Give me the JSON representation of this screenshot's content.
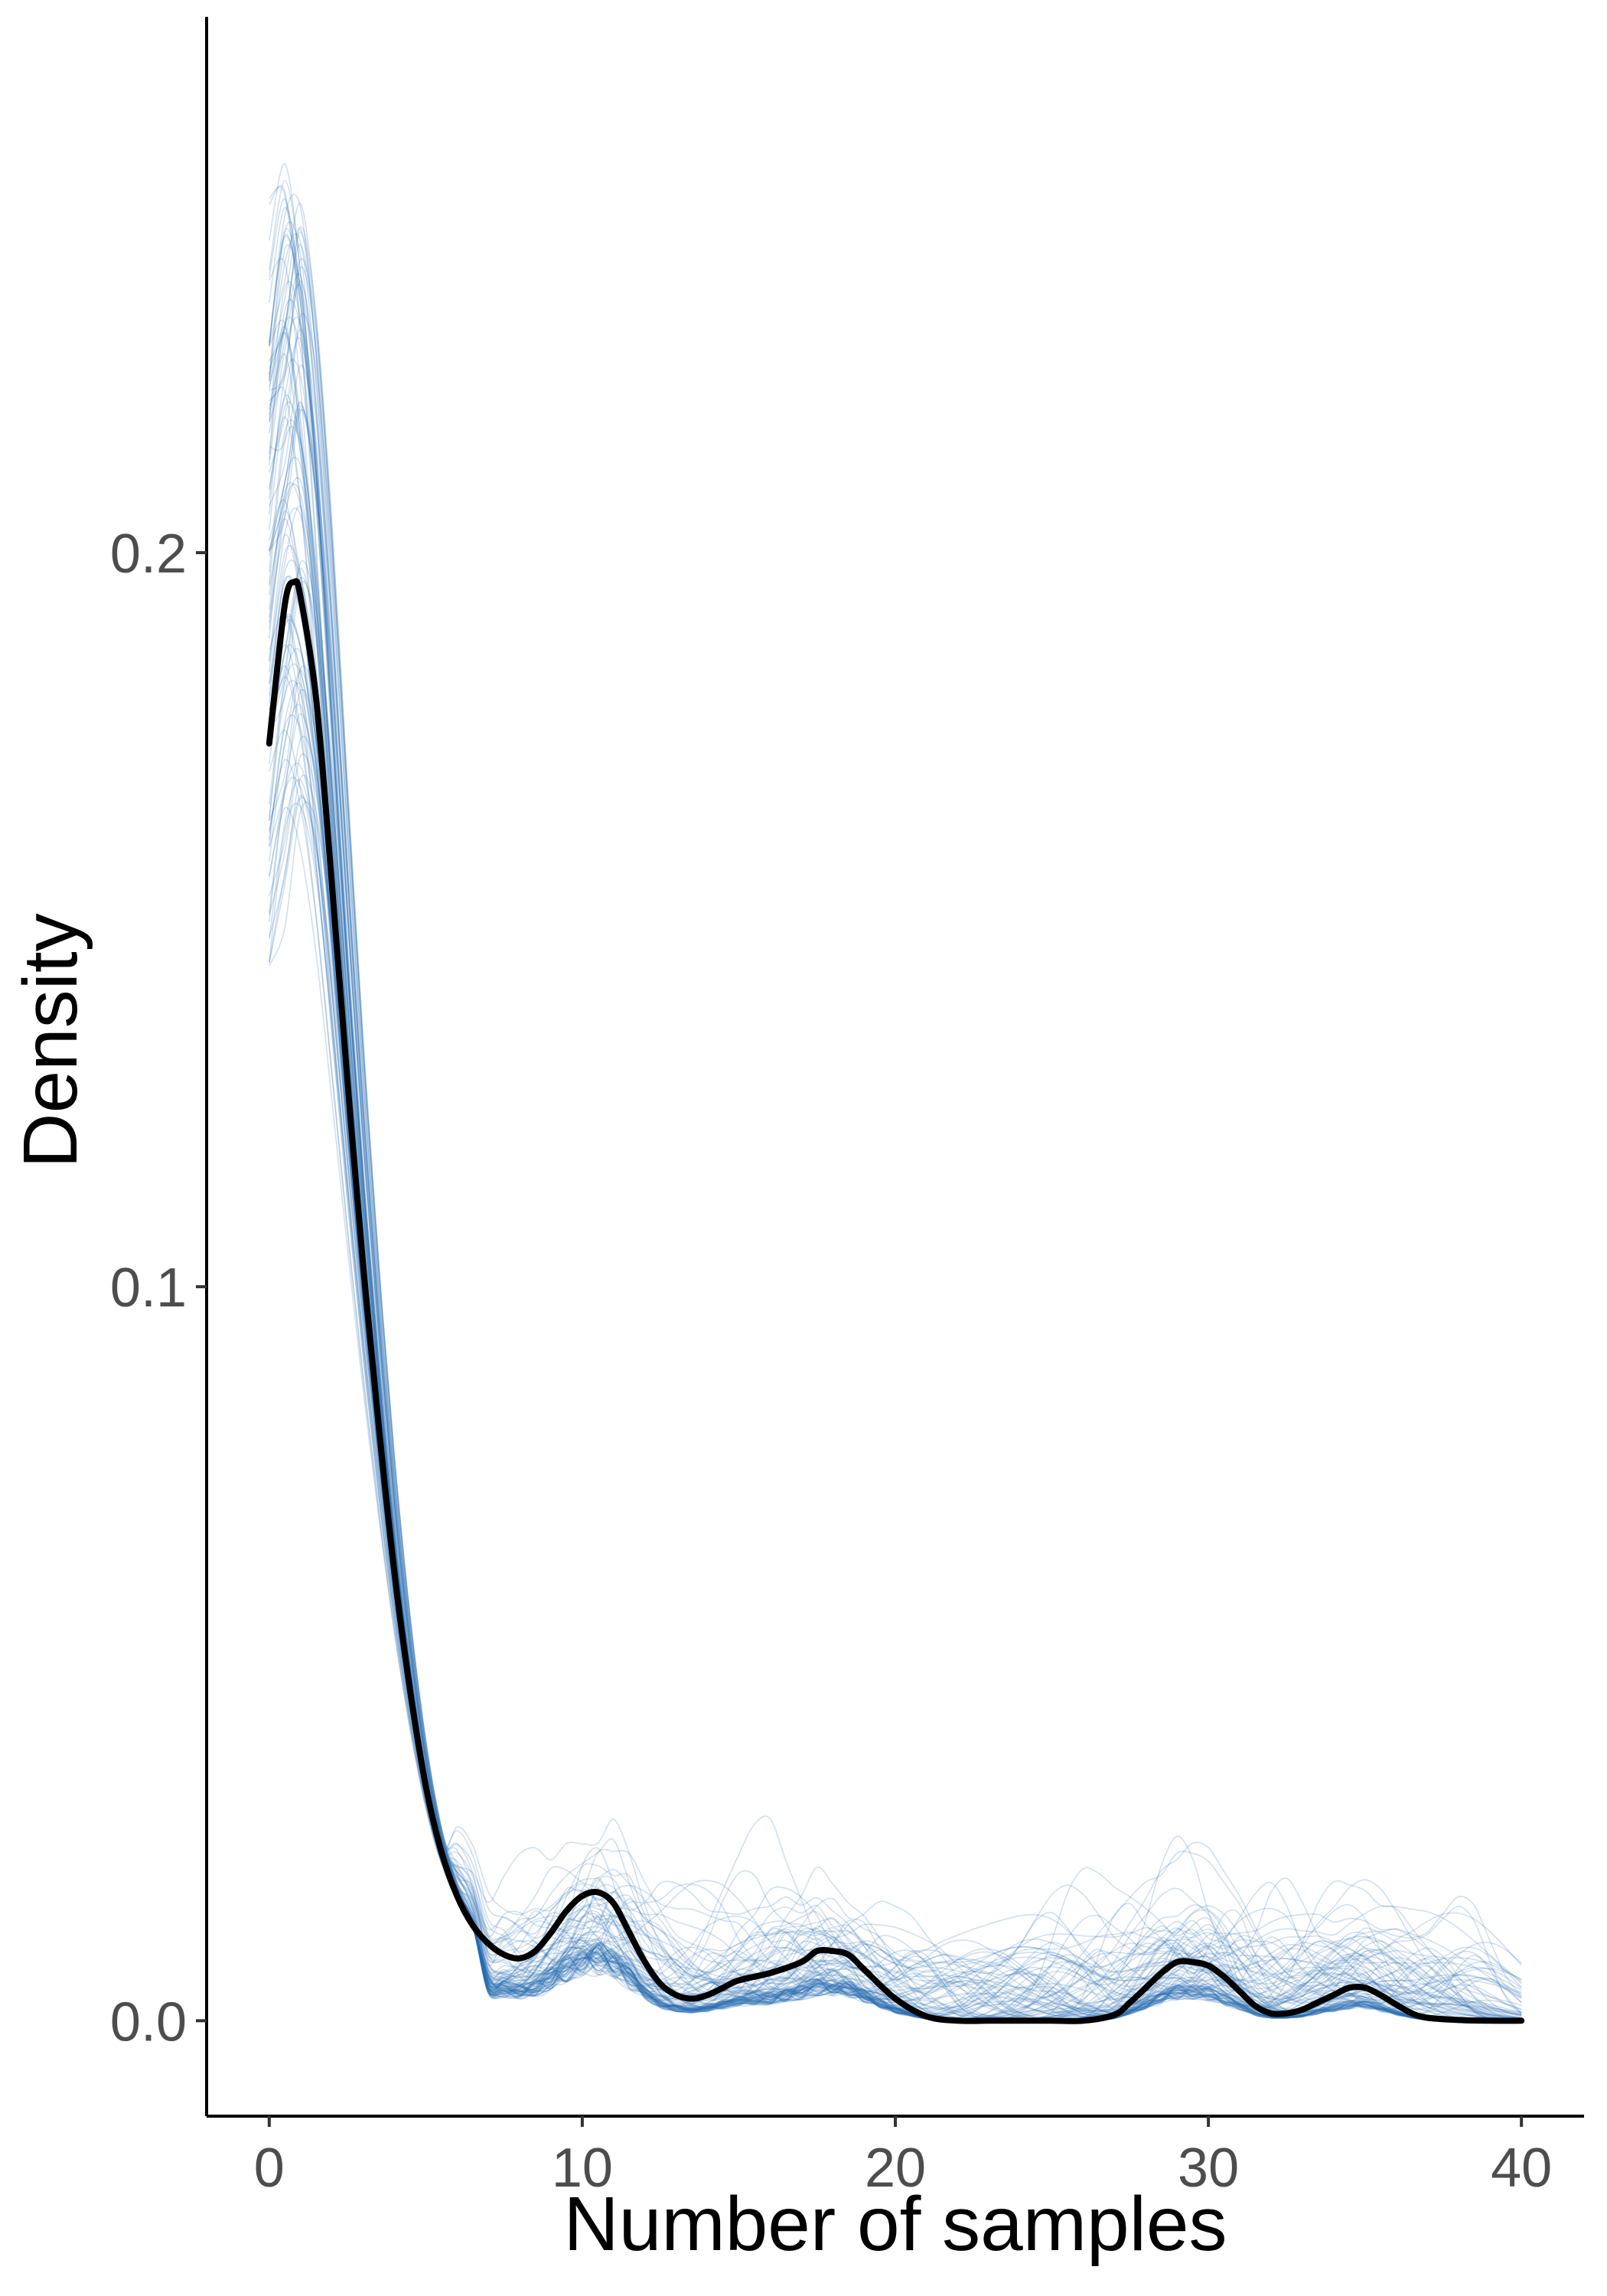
{
  "chart_data": {
    "type": "line",
    "title": "",
    "xlabel": "Number of samples",
    "ylabel": "Density",
    "xlim": [
      -2,
      42
    ],
    "ylim": [
      -0.013,
      0.273
    ],
    "x_ticks": [
      0,
      10,
      20,
      30,
      40
    ],
    "x_tick_labels": [
      "0",
      "10",
      "20",
      "30",
      "40"
    ],
    "y_ticks": [
      0.0,
      0.1,
      0.2
    ],
    "y_tick_labels": [
      "0.0",
      "0.1",
      "0.2"
    ],
    "grid": false,
    "legend": "none",
    "series_colors": {
      "replicates": "#2b6fb3",
      "observed": "#000000"
    },
    "observed": {
      "x": [
        0,
        0.5,
        0.8,
        1,
        1.5,
        2,
        2.5,
        3,
        3.5,
        4,
        4.5,
        5,
        5.5,
        6,
        6.5,
        7,
        7.5,
        8,
        8.5,
        9,
        9.5,
        10,
        10.5,
        11,
        11.5,
        12,
        12.5,
        13,
        13.5,
        14,
        14.5,
        15,
        16,
        17,
        17.5,
        18,
        18.5,
        19,
        20,
        21,
        22,
        23,
        24,
        25,
        26,
        27,
        27.5,
        28,
        28.5,
        29,
        29.5,
        30,
        30.5,
        31,
        31.5,
        32,
        32.5,
        33,
        33.5,
        34,
        34.5,
        35,
        35.5,
        36,
        36.5,
        37,
        38,
        39,
        40
      ],
      "y": [
        0.174,
        0.193,
        0.196,
        0.194,
        0.18,
        0.155,
        0.128,
        0.103,
        0.081,
        0.061,
        0.045,
        0.032,
        0.023,
        0.017,
        0.013,
        0.0105,
        0.009,
        0.0085,
        0.0095,
        0.012,
        0.015,
        0.017,
        0.0175,
        0.016,
        0.012,
        0.008,
        0.005,
        0.0035,
        0.003,
        0.0035,
        0.0045,
        0.0055,
        0.0065,
        0.008,
        0.0095,
        0.0095,
        0.009,
        0.007,
        0.003,
        0.0006,
        0.0,
        0.0,
        0.0,
        0.0,
        0.0,
        0.0008,
        0.0025,
        0.0045,
        0.0065,
        0.008,
        0.008,
        0.0075,
        0.006,
        0.004,
        0.002,
        0.001,
        0.001,
        0.0015,
        0.0025,
        0.0035,
        0.0045,
        0.0045,
        0.0035,
        0.0022,
        0.001,
        0.0004,
        0.0001,
        0.0,
        0.0
      ]
    },
    "replicates": {
      "count": 100,
      "description_free_envelope": {
        "peak_y_range": [
          0.157,
          0.258
        ],
        "x_max": 40
      }
    }
  }
}
